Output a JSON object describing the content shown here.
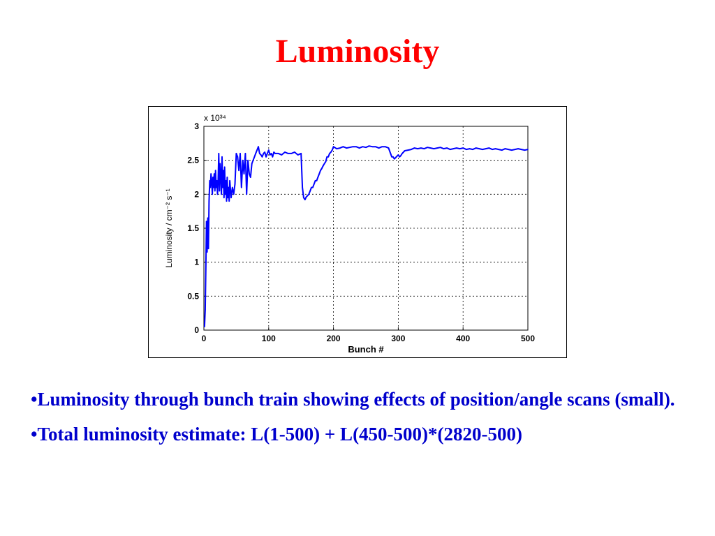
{
  "slide": {
    "title": "Luminosity",
    "title_color": "#ff0000",
    "text_color": "#0000cc"
  },
  "bullets": [
    "•Luminosity through bunch train showing effects of position/angle scans (small).",
    "•Total luminosity estimate: L(1-500) + L(450-500)*(2820-500)"
  ],
  "chart_data": {
    "type": "line",
    "xlabel": "Bunch #",
    "ylabel": "Luminosity / cm⁻² s⁻¹",
    "y_multiplier_label": "x 10³⁴",
    "xlim": [
      0,
      500
    ],
    "ylim": [
      0,
      3
    ],
    "x_ticks": [
      0,
      100,
      200,
      300,
      400,
      500
    ],
    "y_ticks": [
      "0",
      "0.5",
      "1",
      "1.5",
      "2",
      "2.5",
      "3"
    ],
    "grid": true,
    "line_color": "#0000ff",
    "series": [
      {
        "x": [
          1,
          2,
          3,
          4,
          5,
          6,
          7,
          8,
          9,
          10,
          11,
          12,
          13,
          14,
          15,
          16,
          17,
          18,
          19,
          20,
          21,
          22,
          23,
          24,
          25,
          26,
          27,
          28,
          29,
          30,
          31,
          32,
          33,
          34,
          35,
          36,
          37,
          38,
          39,
          40,
          42,
          44,
          46,
          48,
          50,
          52,
          54,
          56,
          58,
          60,
          62,
          64,
          66,
          68,
          70,
          72,
          74,
          76,
          78,
          80,
          82,
          84,
          86,
          88,
          90,
          92,
          94,
          96,
          98,
          100,
          102,
          104,
          106,
          108,
          110,
          115,
          120,
          125,
          130,
          135,
          140,
          145,
          150,
          152,
          154,
          156,
          158,
          160,
          162,
          164,
          166,
          168,
          170,
          172,
          174,
          176,
          178,
          180,
          182,
          184,
          186,
          188,
          190,
          192,
          194,
          196,
          198,
          200,
          205,
          210,
          215,
          220,
          225,
          230,
          235,
          240,
          245,
          250,
          255,
          260,
          265,
          270,
          275,
          280,
          285,
          288,
          290,
          292,
          294,
          296,
          298,
          300,
          302,
          304,
          306,
          308,
          310,
          315,
          320,
          325,
          330,
          335,
          340,
          345,
          350,
          355,
          360,
          365,
          370,
          375,
          380,
          385,
          390,
          395,
          400,
          405,
          410,
          415,
          420,
          425,
          430,
          435,
          440,
          445,
          450,
          455,
          460,
          465,
          470,
          475,
          480,
          485,
          490,
          495,
          500
        ],
        "y": [
          0.05,
          0.3,
          0.9,
          1.6,
          1.15,
          1.65,
          1.2,
          1.9,
          2.2,
          2.1,
          2.3,
          2.2,
          2.0,
          2.25,
          2.1,
          2.3,
          2.05,
          2.35,
          2.1,
          2.2,
          2.0,
          2.2,
          2.6,
          2.05,
          2.45,
          2.3,
          2.0,
          2.55,
          2.1,
          2.35,
          1.95,
          2.4,
          2.0,
          2.2,
          1.9,
          2.25,
          1.95,
          2.1,
          1.9,
          2.2,
          1.95,
          2.1,
          2.0,
          2.15,
          2.6,
          2.55,
          2.35,
          2.6,
          2.1,
          2.5,
          2.3,
          2.6,
          2.0,
          2.5,
          2.3,
          2.25,
          2.45,
          2.5,
          2.55,
          2.6,
          2.65,
          2.7,
          2.6,
          2.58,
          2.55,
          2.6,
          2.62,
          2.55,
          2.6,
          2.65,
          2.58,
          2.6,
          2.55,
          2.62,
          2.6,
          2.6,
          2.58,
          2.62,
          2.6,
          2.6,
          2.62,
          2.58,
          2.6,
          2.1,
          1.95,
          1.92,
          1.96,
          1.98,
          2.0,
          2.05,
          2.1,
          2.1,
          2.15,
          2.2,
          2.2,
          2.25,
          2.3,
          2.35,
          2.38,
          2.42,
          2.45,
          2.48,
          2.55,
          2.55,
          2.6,
          2.62,
          2.65,
          2.7,
          2.67,
          2.68,
          2.7,
          2.68,
          2.69,
          2.7,
          2.7,
          2.68,
          2.7,
          2.69,
          2.71,
          2.7,
          2.7,
          2.68,
          2.7,
          2.7,
          2.68,
          2.6,
          2.55,
          2.55,
          2.52,
          2.54,
          2.56,
          2.58,
          2.55,
          2.57,
          2.6,
          2.62,
          2.64,
          2.65,
          2.66,
          2.68,
          2.67,
          2.68,
          2.67,
          2.69,
          2.68,
          2.67,
          2.68,
          2.69,
          2.67,
          2.68,
          2.66,
          2.67,
          2.68,
          2.67,
          2.68,
          2.66,
          2.67,
          2.66,
          2.68,
          2.67,
          2.66,
          2.67,
          2.68,
          2.66,
          2.67,
          2.66,
          2.65,
          2.67,
          2.66,
          2.65,
          2.66,
          2.67,
          2.66,
          2.65,
          2.66
        ]
      }
    ]
  }
}
